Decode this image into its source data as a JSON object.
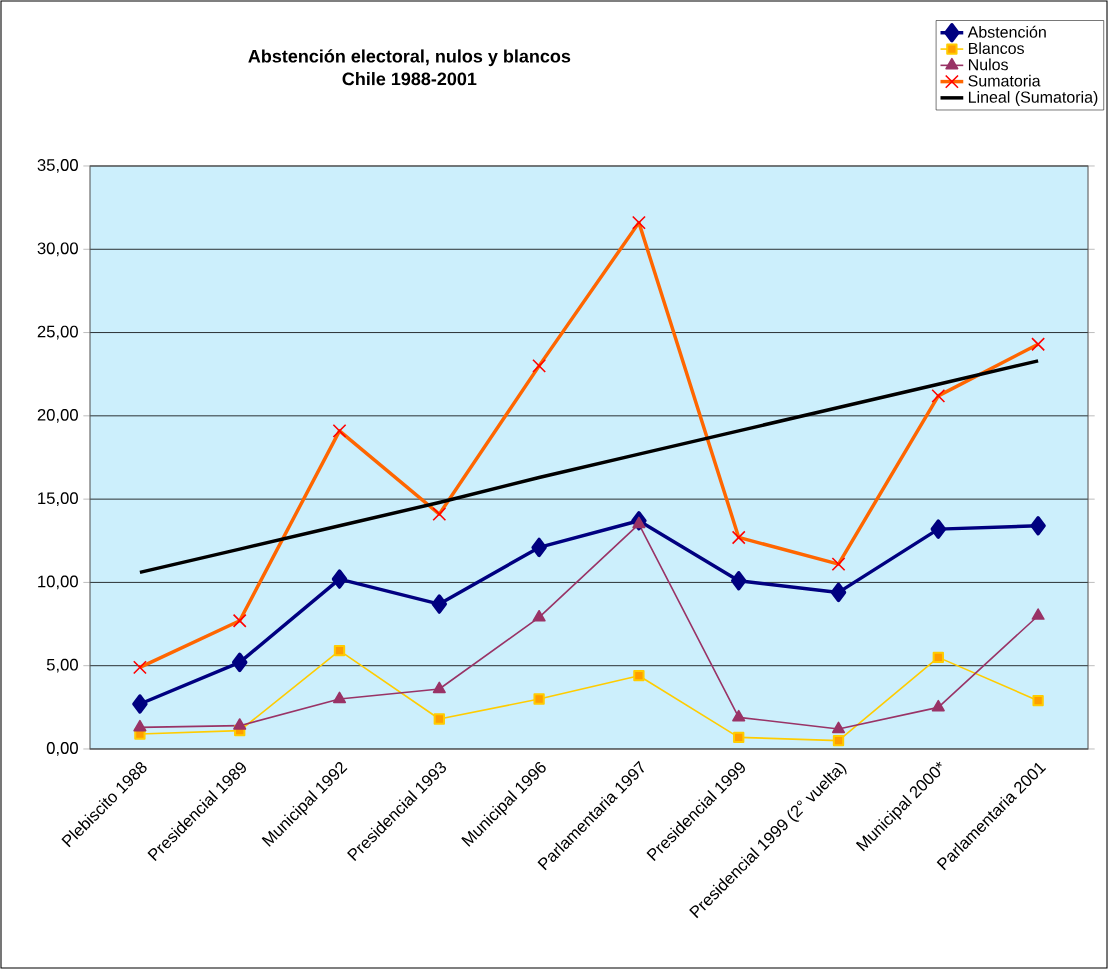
{
  "chart_data": {
    "type": "line",
    "title": "Abstención electoral, nulos y blancos\nChile 1988-2001",
    "categories": [
      "Plebiscito 1988",
      "Presidencial 1989",
      "Municipal 1992",
      "Presidencial 1993",
      "Municipal 1996",
      "Parlamentaria 1997",
      "Presidencial 1999",
      "Presidencial 1999 (2° vuelta)",
      "Municipal 2000*",
      "Parlamentaria 2001"
    ],
    "series": [
      {
        "name": "Abstención",
        "color": "#000080",
        "marker": "diamond",
        "values": [
          2.7,
          5.2,
          10.2,
          8.7,
          12.1,
          13.7,
          10.1,
          9.4,
          13.2,
          13.4
        ]
      },
      {
        "name": "Blancos",
        "color": "#ffcc00",
        "marker": "square",
        "values": [
          0.9,
          1.1,
          5.9,
          1.8,
          3.0,
          4.4,
          0.7,
          0.5,
          5.5,
          2.9
        ]
      },
      {
        "name": "Nulos",
        "color": "#993366",
        "marker": "triangle",
        "values": [
          1.3,
          1.4,
          3.0,
          3.6,
          7.9,
          13.5,
          1.9,
          1.2,
          2.5,
          8.0
        ]
      },
      {
        "name": "Sumatoria",
        "color": "#ff6600",
        "marker": "cross",
        "values": [
          4.9,
          7.7,
          19.1,
          14.1,
          23.0,
          31.6,
          12.7,
          11.1,
          21.2,
          24.3
        ]
      },
      {
        "name": "Lineal (Sumatoria)",
        "color": "#000000",
        "marker": "none",
        "values": [
          10.6,
          12.0,
          13.4,
          14.8,
          16.3,
          17.7,
          19.1,
          20.5,
          21.9,
          23.3
        ]
      }
    ],
    "ylim": [
      0,
      35
    ],
    "yticks": [
      {
        "value": 0,
        "label": "0,00"
      },
      {
        "value": 5,
        "label": "5,00"
      },
      {
        "value": 10,
        "label": "10,00"
      },
      {
        "value": 15,
        "label": "15,00"
      },
      {
        "value": 20,
        "label": "20,00"
      },
      {
        "value": 25,
        "label": "25,00"
      },
      {
        "value": 30,
        "label": "30,00"
      },
      {
        "value": 35,
        "label": "35,00"
      }
    ],
    "grid": "y",
    "legend": "top right"
  }
}
